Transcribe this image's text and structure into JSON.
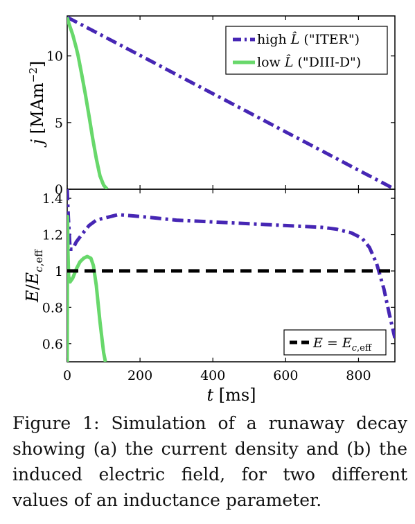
{
  "figure": {
    "caption_label": "Figure 1:",
    "caption_text": " Simulation of a runaway decay showing (a) the current density and (b) the induced electric field, for two different values of an inductance parameter."
  },
  "colors": {
    "iter": "#4626b4",
    "diiid": "#68d86b",
    "threshold": "#000000",
    "axis": "#000000"
  },
  "chart_data": [
    {
      "panel": "top",
      "type": "line",
      "ylabel": "j [MAm⁻²]",
      "xlim": [
        0,
        900
      ],
      "ylim": [
        0,
        13
      ],
      "yticks": [
        0,
        5,
        10
      ],
      "ytick_labels": [
        "0",
        "5",
        "10"
      ],
      "legend": {
        "placement": "top-right"
      },
      "series": [
        {
          "name": "high L̂ (\"ITER\")",
          "style": "dash-dot",
          "color": "#4626b4",
          "x": [
            0,
            100,
            200,
            300,
            400,
            500,
            600,
            700,
            800,
            900
          ],
          "y": [
            12.9,
            11.47,
            10.04,
            8.6,
            7.17,
            5.74,
            4.3,
            2.87,
            1.43,
            0.0
          ]
        },
        {
          "name": "low L̂ (\"DIII-D\")",
          "style": "solid",
          "color": "#68d86b",
          "x": [
            0,
            5,
            10,
            15,
            20,
            25,
            30,
            40,
            50,
            60,
            70,
            80,
            90,
            100,
            110
          ],
          "y": [
            12.9,
            12.4,
            12.0,
            11.6,
            11.1,
            10.6,
            10.0,
            8.6,
            7.1,
            5.5,
            3.8,
            2.3,
            1.0,
            0.3,
            0.0
          ]
        }
      ]
    },
    {
      "panel": "bottom",
      "type": "line",
      "xlabel": "t [ms]",
      "ylabel": "E/Ec,eff",
      "xlim": [
        0,
        900
      ],
      "ylim": [
        0.5,
        1.45
      ],
      "xticks": [
        0,
        200,
        400,
        600,
        800
      ],
      "xtick_labels": [
        "0",
        "200",
        "400",
        "600",
        "800"
      ],
      "yticks": [
        0.6,
        0.8,
        1.0,
        1.2,
        1.4
      ],
      "ytick_labels": [
        "0.6",
        "0.8",
        "1",
        "1.2",
        "1.4"
      ],
      "legend": {
        "placement": "bottom-right"
      },
      "series": [
        {
          "name": "high L̂ (\"ITER\")",
          "style": "dash-dot",
          "color": "#4626b4",
          "x": [
            0,
            3,
            8,
            15,
            25,
            40,
            60,
            80,
            100,
            120,
            140,
            200,
            300,
            400,
            500,
            600,
            700,
            740,
            780,
            810,
            830,
            850,
            870,
            885,
            900
          ],
          "y": [
            1.45,
            1.3,
            1.12,
            1.12,
            1.16,
            1.2,
            1.25,
            1.28,
            1.29,
            1.3,
            1.31,
            1.3,
            1.28,
            1.27,
            1.26,
            1.25,
            1.24,
            1.23,
            1.21,
            1.18,
            1.13,
            1.04,
            0.9,
            0.76,
            0.63
          ]
        },
        {
          "name": "low L̂ (\"DIII-D\")",
          "style": "solid",
          "color": "#68d86b",
          "x": [
            0,
            1,
            2,
            4,
            8,
            15,
            25,
            35,
            45,
            55,
            65,
            72,
            80,
            90,
            100,
            105
          ],
          "y": [
            0.5,
            1.3,
            1.1,
            0.97,
            0.94,
            0.96,
            1.01,
            1.05,
            1.07,
            1.08,
            1.07,
            1.03,
            0.92,
            0.72,
            0.55,
            0.5
          ]
        },
        {
          "name": "E = Ec,eff",
          "style": "dashed",
          "color": "#000000",
          "x": [
            0,
            900
          ],
          "y": [
            1.0,
            1.0
          ]
        }
      ]
    }
  ]
}
